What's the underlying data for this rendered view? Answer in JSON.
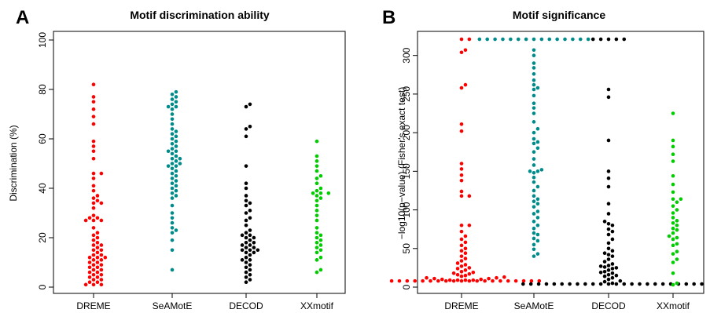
{
  "colors": {
    "DREME": "#ff0000",
    "SeAMotE": "#008b8b",
    "DECOD": "#000000",
    "XXmotif": "#00cc00"
  },
  "chart_data": [
    {
      "type": "scatter",
      "style": "beeswarm",
      "panel_label": "A",
      "title": "Motif discrimination ability",
      "xlabel": "",
      "ylabel": "Discrimination (%)",
      "categories": [
        "DREME",
        "SeAMotE",
        "DECOD",
        "XXmotif"
      ],
      "ylim": [
        0,
        100
      ],
      "yticks": [
        0,
        20,
        40,
        60,
        80,
        100
      ],
      "grid": false,
      "series": [
        {
          "values": [
            82,
            77,
            75,
            72,
            69,
            66,
            59,
            57,
            55,
            52,
            46,
            46,
            44,
            41,
            39,
            37,
            36,
            35,
            34,
            34,
            32,
            29,
            28,
            28,
            27,
            27,
            27,
            24,
            22,
            21,
            20,
            19,
            18,
            17,
            17,
            16,
            15,
            15,
            14,
            13,
            13,
            12,
            12,
            12,
            11,
            11,
            10,
            10,
            9,
            9,
            8,
            8,
            7,
            7,
            6,
            6,
            5,
            5,
            4,
            4,
            3,
            3,
            2,
            2,
            1,
            1,
            1
          ]
        },
        {
          "values": [
            79,
            78,
            77,
            76,
            75,
            74,
            73,
            73,
            72,
            70,
            68,
            66,
            64,
            63,
            62,
            61,
            60,
            59,
            58,
            57,
            56,
            55,
            55,
            54,
            53,
            52,
            52,
            51,
            50,
            50,
            49,
            49,
            48,
            47,
            46,
            45,
            44,
            43,
            42,
            41,
            40,
            39,
            38,
            37,
            36,
            33,
            30,
            28,
            26,
            24,
            23,
            22,
            19,
            15,
            7
          ]
        },
        {
          "values": [
            74,
            73,
            65,
            64,
            61,
            49,
            42,
            40,
            37,
            35,
            34,
            33,
            31,
            30,
            28,
            27,
            25,
            23,
            22,
            21,
            21,
            20,
            20,
            19,
            18,
            18,
            17,
            17,
            16,
            16,
            15,
            15,
            15,
            14,
            14,
            13,
            12,
            11,
            11,
            10,
            9,
            8,
            7,
            6,
            5,
            4,
            3,
            2
          ]
        },
        {
          "values": [
            59,
            53,
            51,
            49,
            47,
            45,
            44,
            42,
            40,
            39,
            38,
            38,
            38,
            37,
            36,
            35,
            33,
            31,
            29,
            27,
            24,
            22,
            21,
            20,
            19,
            18,
            17,
            16,
            15,
            14,
            12,
            11,
            7,
            6
          ]
        }
      ]
    },
    {
      "type": "scatter",
      "style": "beeswarm",
      "panel_label": "B",
      "title": "Motif significance",
      "xlabel": "",
      "ylabel": "−log10(p−value) (Fisher's exact test)",
      "categories": [
        "DREME",
        "SeAMotE",
        "DECOD",
        "XXmotif"
      ],
      "ylim": [
        0,
        320
      ],
      "yticks": [
        0,
        50,
        100,
        150,
        200,
        250,
        300
      ],
      "grid": false,
      "series": [
        {
          "values": [
            321,
            321,
            307,
            304,
            262,
            258,
            211,
            202,
            160,
            153,
            145,
            138,
            124,
            118,
            118,
            80,
            80,
            72,
            66,
            62,
            58,
            54,
            50,
            47,
            44,
            40,
            37,
            34,
            31,
            29,
            27,
            25,
            24,
            22,
            20,
            19,
            18,
            17,
            16,
            15,
            14,
            13,
            12,
            12,
            11,
            11,
            10,
            10,
            9,
            9,
            9,
            9,
            8,
            8,
            8,
            8,
            8,
            8,
            8,
            8,
            8,
            8,
            8,
            8,
            8,
            8,
            8,
            8,
            8,
            8,
            8,
            8
          ]
        },
        {
          "values": [
            321,
            321,
            321,
            321,
            321,
            321,
            321,
            321,
            321,
            321,
            321,
            321,
            321,
            321,
            321,
            307,
            300,
            290,
            284,
            276,
            268,
            262,
            258,
            256,
            248,
            238,
            232,
            225,
            214,
            205,
            200,
            192,
            188,
            186,
            180,
            175,
            166,
            158,
            152,
            150,
            150,
            148,
            142,
            136,
            130,
            125,
            118,
            114,
            111,
            108,
            104,
            98,
            95,
            90,
            85,
            80,
            76,
            70,
            68,
            63,
            60,
            55,
            49,
            43,
            40
          ]
        },
        {
          "values": [
            321,
            321,
            321,
            321,
            321,
            256,
            246,
            190,
            150,
            141,
            130,
            108,
            95,
            85,
            82,
            80,
            75,
            72,
            68,
            62,
            57,
            50,
            47,
            44,
            42,
            40,
            36,
            33,
            30,
            28,
            27,
            26,
            25,
            24,
            22,
            20,
            19,
            18,
            16,
            15,
            14,
            12,
            10,
            8,
            7,
            5,
            4,
            4,
            4,
            4,
            4,
            4,
            4,
            4,
            4,
            4,
            4,
            4,
            4,
            4,
            4,
            4,
            4,
            4,
            4,
            4,
            4,
            4,
            4,
            4
          ]
        },
        {
          "values": [
            225,
            190,
            182,
            172,
            163,
            144,
            133,
            123,
            114,
            114,
            110,
            105,
            100,
            96,
            90,
            86,
            83,
            80,
            76,
            74,
            70,
            66,
            64,
            62,
            56,
            54,
            46,
            43,
            36,
            32,
            18,
            5,
            3
          ]
        }
      ]
    }
  ]
}
